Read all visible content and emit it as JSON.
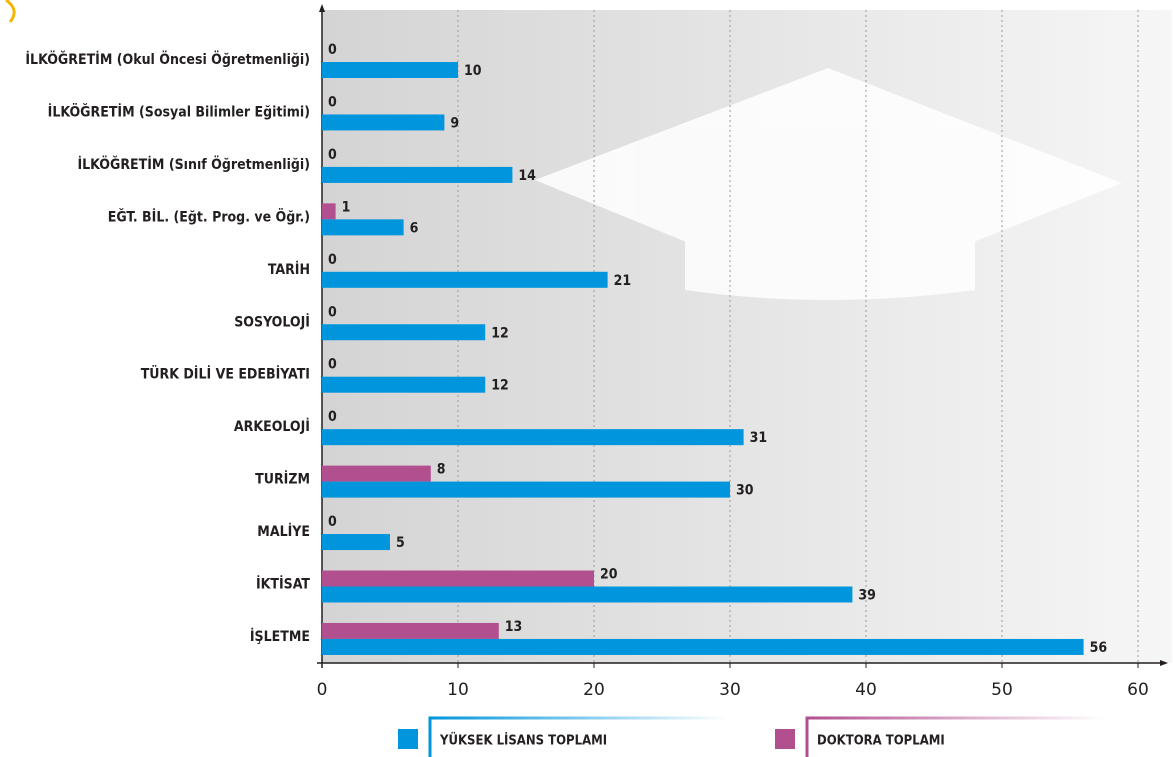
{
  "chart_data": {
    "type": "bar",
    "orientation": "horizontal",
    "categories": [
      "İLKÖĞRETİM (Okul Öncesi Öğretmenliği)",
      "İLKÖĞRETİM (Sosyal Bilimler Eğitimi)",
      "İLKÖĞRETİM (Sınıf Öğretmenliği)",
      "EĞT. BİL. (Eğt. Prog. ve Öğr.)",
      "TARİH",
      "SOSYOLOJİ",
      "TÜRK DİLİ VE EDEBİYATI",
      "ARKEOLOJİ",
      "TURİZM",
      "MALİYE",
      "İKTİSAT",
      "İŞLETME"
    ],
    "series": [
      {
        "name": "DOKTORA TOPLAMI",
        "color": "#b24f8f",
        "values": [
          0,
          0,
          0,
          1,
          0,
          0,
          0,
          0,
          8,
          0,
          20,
          13
        ]
      },
      {
        "name": "YÜKSEK LİSANS TOPLAMI",
        "color": "#0095dc",
        "values": [
          10,
          9,
          14,
          6,
          21,
          12,
          12,
          31,
          30,
          5,
          39,
          56
        ]
      }
    ],
    "xlim": [
      0,
      60
    ],
    "xticks": [
      0,
      10,
      20,
      30,
      40,
      50,
      60
    ],
    "grid": true,
    "legend": "bottom"
  }
}
